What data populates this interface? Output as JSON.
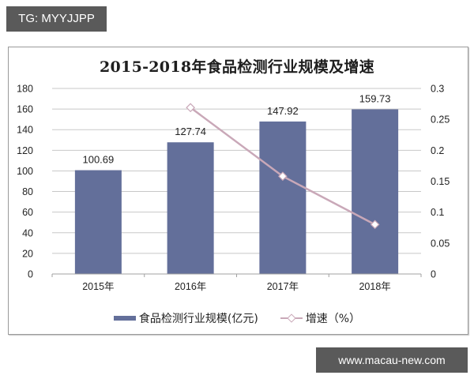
{
  "watermarks": {
    "top_left": "TG: MYYJJPP",
    "bottom_right": "www.macau-new.com"
  },
  "colors": {
    "bar": "#636f9a",
    "line": "#c9a8b8",
    "grid": "#c8c8c8",
    "tag_bg": "#5a5a5a"
  },
  "legend": {
    "bar_label": "食品检测行业规模(亿元)",
    "line_label": "增速（%）"
  },
  "chart_data": {
    "type": "bar+line",
    "title": "2015-2018年食品检测行业规模及增速",
    "xlabel": "",
    "ylabel": "",
    "y2label": "",
    "categories": [
      "2015年",
      "2016年",
      "2017年",
      "2018年"
    ],
    "series": [
      {
        "name": "食品检测行业规模(亿元)",
        "type": "bar",
        "axis": "left",
        "values": [
          100.69,
          127.74,
          147.92,
          159.73
        ],
        "labels": [
          "100.69",
          "127.74",
          "147.92",
          "159.73"
        ]
      },
      {
        "name": "增速（%）",
        "type": "line",
        "axis": "right",
        "marker": "diamond",
        "values": [
          null,
          0.269,
          0.158,
          0.08
        ]
      }
    ],
    "ylim": [
      0,
      180
    ],
    "yticks": [
      0,
      20,
      40,
      60,
      80,
      100,
      120,
      140,
      160,
      180
    ],
    "y2lim": [
      0,
      0.3
    ],
    "y2ticks": [
      "0",
      "0.05",
      "0.1",
      "0.15",
      "0.2",
      "0.25",
      "0.3"
    ],
    "grid": true,
    "legend_position": "bottom"
  }
}
